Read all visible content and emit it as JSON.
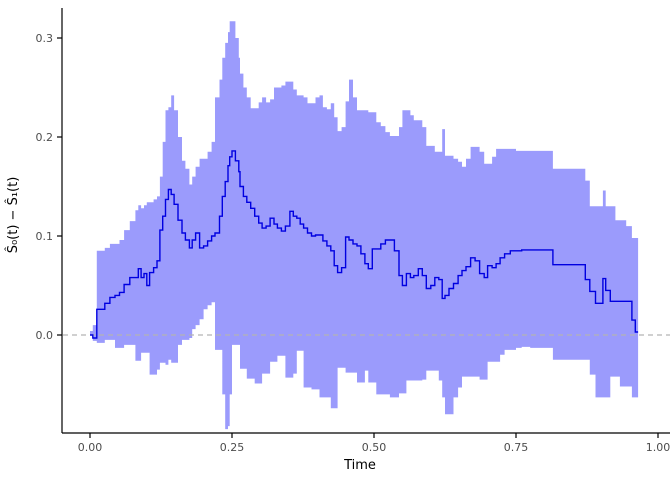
{
  "figure": {
    "kind": "survival-difference-step-plot-with-confidence-band",
    "background": "#ffffff"
  },
  "chart_data": {
    "type": "line",
    "line_style": "step",
    "title": "",
    "xlabel": "Time",
    "ylabel": "Ŝ₀(t) − Ŝ₁(t)",
    "xlim": [
      -0.05,
      1.03
    ],
    "ylim": [
      -0.105,
      0.33
    ],
    "grid": false,
    "legend": "none",
    "x_ticks": [
      {
        "t": 0.0,
        "label": "0.00"
      },
      {
        "t": 0.25,
        "label": "0.25"
      },
      {
        "t": 0.5,
        "label": "0.50"
      },
      {
        "t": 0.75,
        "label": "0.75"
      },
      {
        "t": 1.0,
        "label": "1.00"
      }
    ],
    "y_ticks": [
      {
        "v": 0.0,
        "label": "0.0"
      },
      {
        "v": 0.1,
        "label": "0.1"
      },
      {
        "v": 0.2,
        "label": "0.2"
      },
      {
        "v": 0.3,
        "label": "0.3"
      }
    ],
    "reference_line": {
      "y": 0,
      "style": "dashed",
      "color": "#b3b3b3"
    },
    "colors": {
      "band": "#9b9bfc",
      "line": "#0000e0",
      "axis": "#000000",
      "tick_text": "#4d4d4d",
      "title_text": "#000000"
    },
    "series": {
      "t": [
        0.0,
        0.005,
        0.012,
        0.026,
        0.035,
        0.044,
        0.052,
        0.06,
        0.07,
        0.08,
        0.085,
        0.09,
        0.095,
        0.1,
        0.105,
        0.112,
        0.118,
        0.123,
        0.128,
        0.133,
        0.138,
        0.143,
        0.148,
        0.155,
        0.162,
        0.168,
        0.175,
        0.18,
        0.186,
        0.193,
        0.2,
        0.207,
        0.214,
        0.22,
        0.228,
        0.233,
        0.238,
        0.243,
        0.246,
        0.25,
        0.256,
        0.262,
        0.264,
        0.27,
        0.276,
        0.283,
        0.29,
        0.297,
        0.303,
        0.31,
        0.317,
        0.324,
        0.33,
        0.337,
        0.344,
        0.352,
        0.358,
        0.364,
        0.37,
        0.376,
        0.383,
        0.39,
        0.397,
        0.404,
        0.41,
        0.417,
        0.424,
        0.43,
        0.436,
        0.443,
        0.45,
        0.456,
        0.463,
        0.47,
        0.477,
        0.484,
        0.49,
        0.497,
        0.504,
        0.512,
        0.52,
        0.528,
        0.536,
        0.544,
        0.55,
        0.557,
        0.564,
        0.57,
        0.578,
        0.585,
        0.592,
        0.6,
        0.607,
        0.614,
        0.62,
        0.625,
        0.632,
        0.64,
        0.648,
        0.655,
        0.662,
        0.67,
        0.678,
        0.686,
        0.694,
        0.7,
        0.708,
        0.715,
        0.722,
        0.73,
        0.74,
        0.75,
        0.76,
        0.775,
        0.79,
        0.805,
        0.815,
        0.83,
        0.845,
        0.86,
        0.872,
        0.88,
        0.89,
        0.903,
        0.908,
        0.916,
        0.925,
        0.933,
        0.944,
        0.954,
        0.96,
        0.965
      ],
      "estimate": [
        0.0,
        -0.003,
        0.026,
        0.032,
        0.038,
        0.04,
        0.043,
        0.051,
        0.058,
        0.058,
        0.067,
        0.058,
        0.062,
        0.05,
        0.063,
        0.068,
        0.075,
        0.106,
        0.12,
        0.137,
        0.147,
        0.142,
        0.132,
        0.116,
        0.103,
        0.096,
        0.088,
        0.096,
        0.103,
        0.088,
        0.09,
        0.095,
        0.1,
        0.103,
        0.12,
        0.14,
        0.155,
        0.171,
        0.18,
        0.186,
        0.176,
        0.165,
        0.15,
        0.14,
        0.134,
        0.128,
        0.12,
        0.113,
        0.108,
        0.11,
        0.118,
        0.112,
        0.108,
        0.105,
        0.11,
        0.125,
        0.12,
        0.118,
        0.112,
        0.108,
        0.103,
        0.1,
        0.101,
        0.101,
        0.095,
        0.09,
        0.085,
        0.07,
        0.063,
        0.068,
        0.099,
        0.096,
        0.092,
        0.09,
        0.082,
        0.072,
        0.067,
        0.087,
        0.087,
        0.092,
        0.096,
        0.096,
        0.085,
        0.06,
        0.05,
        0.062,
        0.058,
        0.06,
        0.067,
        0.06,
        0.047,
        0.05,
        0.058,
        0.056,
        0.037,
        0.04,
        0.047,
        0.052,
        0.06,
        0.065,
        0.069,
        0.078,
        0.075,
        0.062,
        0.058,
        0.07,
        0.068,
        0.072,
        0.078,
        0.082,
        0.085,
        0.085,
        0.086,
        0.086,
        0.086,
        0.086,
        0.071,
        0.071,
        0.071,
        0.071,
        0.056,
        0.044,
        0.032,
        0.057,
        0.045,
        0.034,
        0.034,
        0.034,
        0.034,
        0.015,
        0.003,
        0.003
      ],
      "lower": [
        0.0,
        -0.006,
        -0.008,
        -0.005,
        -0.005,
        -0.013,
        -0.013,
        -0.01,
        -0.01,
        -0.026,
        -0.026,
        -0.018,
        -0.018,
        -0.018,
        -0.04,
        -0.04,
        -0.035,
        -0.028,
        -0.028,
        -0.03,
        -0.025,
        -0.028,
        -0.028,
        -0.01,
        -0.005,
        -0.005,
        -0.003,
        0.006,
        0.01,
        0.016,
        0.026,
        0.03,
        0.033,
        -0.015,
        -0.015,
        -0.06,
        -0.095,
        -0.092,
        -0.06,
        -0.01,
        -0.01,
        -0.01,
        -0.034,
        -0.034,
        -0.044,
        -0.044,
        -0.049,
        -0.049,
        -0.039,
        -0.039,
        -0.027,
        -0.027,
        -0.021,
        -0.021,
        -0.043,
        -0.043,
        -0.039,
        -0.016,
        -0.016,
        -0.053,
        -0.053,
        -0.055,
        -0.055,
        -0.063,
        -0.063,
        -0.063,
        -0.074,
        -0.074,
        -0.033,
        -0.033,
        -0.038,
        -0.038,
        -0.038,
        -0.048,
        -0.048,
        -0.036,
        -0.048,
        -0.048,
        -0.06,
        -0.06,
        -0.06,
        -0.063,
        -0.063,
        -0.059,
        -0.059,
        -0.046,
        -0.046,
        -0.046,
        -0.046,
        -0.045,
        -0.036,
        -0.036,
        -0.036,
        -0.046,
        -0.063,
        -0.08,
        -0.08,
        -0.063,
        -0.053,
        -0.042,
        -0.042,
        -0.042,
        -0.042,
        -0.045,
        -0.045,
        -0.027,
        -0.027,
        -0.027,
        -0.02,
        -0.015,
        -0.015,
        -0.013,
        -0.012,
        -0.013,
        -0.013,
        -0.013,
        -0.025,
        -0.025,
        -0.025,
        -0.025,
        -0.025,
        -0.04,
        -0.063,
        -0.063,
        -0.063,
        -0.042,
        -0.042,
        -0.052,
        -0.052,
        -0.063,
        -0.063,
        -0.063
      ],
      "upper": [
        0.004,
        0.01,
        0.085,
        0.088,
        0.092,
        0.092,
        0.096,
        0.106,
        0.115,
        0.126,
        0.131,
        0.128,
        0.131,
        0.134,
        0.134,
        0.137,
        0.14,
        0.16,
        0.195,
        0.227,
        0.23,
        0.242,
        0.227,
        0.2,
        0.176,
        0.168,
        0.152,
        0.16,
        0.17,
        0.178,
        0.178,
        0.185,
        0.195,
        0.24,
        0.258,
        0.28,
        0.295,
        0.306,
        0.317,
        0.317,
        0.3,
        0.28,
        0.264,
        0.25,
        0.24,
        0.229,
        0.229,
        0.235,
        0.24,
        0.235,
        0.238,
        0.25,
        0.25,
        0.252,
        0.256,
        0.256,
        0.248,
        0.242,
        0.242,
        0.24,
        0.234,
        0.234,
        0.24,
        0.242,
        0.23,
        0.228,
        0.234,
        0.22,
        0.206,
        0.21,
        0.236,
        0.258,
        0.24,
        0.227,
        0.227,
        0.227,
        0.225,
        0.225,
        0.215,
        0.211,
        0.205,
        0.201,
        0.201,
        0.21,
        0.227,
        0.227,
        0.222,
        0.217,
        0.217,
        0.21,
        0.191,
        0.191,
        0.185,
        0.185,
        0.208,
        0.181,
        0.181,
        0.178,
        0.175,
        0.17,
        0.178,
        0.19,
        0.19,
        0.185,
        0.173,
        0.173,
        0.18,
        0.188,
        0.188,
        0.188,
        0.188,
        0.186,
        0.186,
        0.186,
        0.186,
        0.186,
        0.168,
        0.168,
        0.168,
        0.168,
        0.156,
        0.13,
        0.13,
        0.146,
        0.13,
        0.13,
        0.116,
        0.116,
        0.11,
        0.098,
        0.098,
        0.098
      ]
    }
  }
}
